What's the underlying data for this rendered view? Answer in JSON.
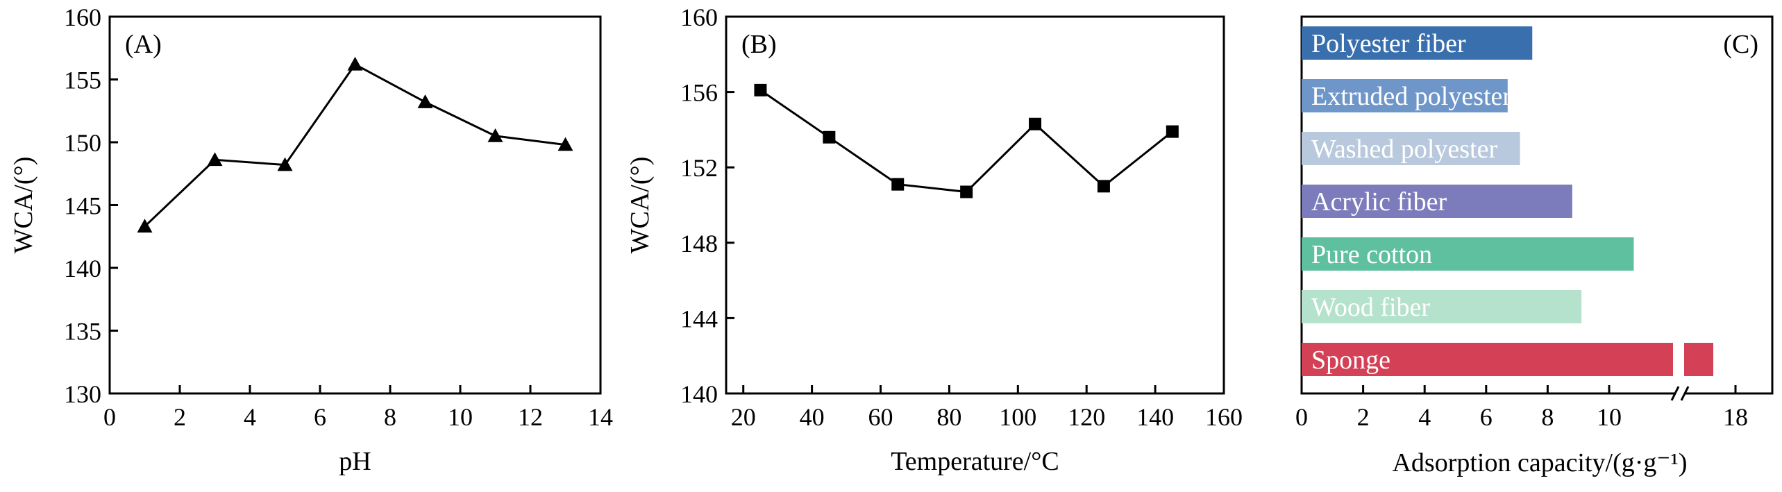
{
  "chart_data": [
    {
      "type": "line",
      "panel_label": "(A)",
      "xlabel": "pH",
      "ylabel": "WCA/(°)",
      "xlim": [
        0,
        14
      ],
      "ylim": [
        130,
        160
      ],
      "xticks": [
        0,
        2,
        4,
        6,
        8,
        10,
        12,
        14
      ],
      "yticks": [
        130,
        135,
        140,
        145,
        150,
        155,
        160
      ],
      "marker": "triangle",
      "x": [
        1,
        3,
        5,
        7,
        9,
        11,
        13
      ],
      "y": [
        143.3,
        148.6,
        148.2,
        156.2,
        153.2,
        150.5,
        149.8
      ]
    },
    {
      "type": "line",
      "panel_label": "(B)",
      "xlabel": "Temperature/°C",
      "ylabel": "WCA/(°)",
      "xlim": [
        15,
        160
      ],
      "ylim": [
        140,
        160
      ],
      "xticks": [
        20,
        40,
        60,
        80,
        100,
        120,
        140,
        160
      ],
      "yticks": [
        140,
        144,
        148,
        152,
        156,
        160
      ],
      "marker": "square",
      "x": [
        25,
        45,
        65,
        85,
        105,
        125,
        145
      ],
      "y": [
        156.1,
        153.6,
        151.1,
        150.7,
        154.3,
        151.0,
        153.9
      ]
    },
    {
      "type": "bar",
      "orientation": "horizontal",
      "panel_label": "(C)",
      "xlabel": "Adsorption capacity/(g·g⁻¹)",
      "xticks": [
        "0",
        "2",
        "4",
        "6",
        "8",
        "10",
        "18"
      ],
      "axis_break": true,
      "categories": [
        "Polyester fiber",
        "Extruded polyester",
        "Washed polyester",
        "Acrylic fiber",
        "Pure cotton",
        "Wood fiber",
        "Sponge"
      ],
      "values": [
        7.5,
        6.7,
        7.1,
        8.8,
        10.8,
        9.1,
        18.0
      ],
      "colors": [
        "#3a6fad",
        "#6e96c9",
        "#b9c9dd",
        "#7c7cbd",
        "#5fc09f",
        "#b5e2cd",
        "#d44055"
      ]
    }
  ]
}
